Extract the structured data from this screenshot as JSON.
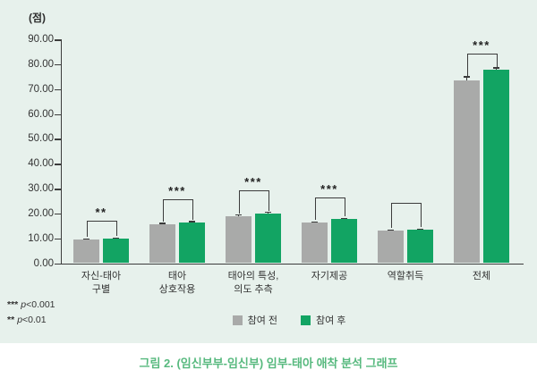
{
  "figure": {
    "unit_label": "(점)",
    "caption": "그림 2. (임신부부-임신부) 임부-태아 애착 분석 그래프"
  },
  "footnotes": [
    {
      "stars": "***",
      "pvar": "p",
      "rel": "<0.001"
    },
    {
      "stars": "**",
      "pvar": "p",
      "rel": "<0.01"
    }
  ],
  "legend": [
    {
      "label": "참여 전",
      "color": "#a9aaa9"
    },
    {
      "label": "참여 후",
      "color": "#12a463"
    }
  ],
  "colors": {
    "panel_bg": "#e7f1ec",
    "bar_pre": "#a9aaa9",
    "bar_post": "#12a463",
    "axis": "#3c3c3c",
    "caption_green": "#57b97e"
  },
  "chart_data": {
    "type": "bar",
    "title": "",
    "ylabel": "(점)",
    "ylim": [
      0,
      90
    ],
    "ytick_step": 10,
    "ytick_labels": [
      "0.00",
      "10.00",
      "20.00",
      "30.00",
      "40.00",
      "50.00",
      "60.00",
      "70.00",
      "80.00",
      "90.00"
    ],
    "categories": [
      "자신-태아\n구별",
      "태아\n상호작용",
      "태아의 특성,\n의도 추측",
      "자기제공",
      "역할취득",
      "전체"
    ],
    "series": [
      {
        "name": "참여 전",
        "color": "#a9aaa9",
        "values": [
          9.4,
          15.8,
          19.0,
          16.3,
          13.0,
          73.6
        ],
        "errors": [
          0.5,
          0.4,
          0.5,
          0.4,
          0.5,
          1.5
        ]
      },
      {
        "name": "참여 후",
        "color": "#12a463",
        "values": [
          9.8,
          16.5,
          20.1,
          17.9,
          13.4,
          77.8
        ],
        "errors": [
          0.4,
          0.4,
          0.5,
          0.4,
          0.5,
          0.9
        ]
      }
    ],
    "significance": [
      "**",
      "***",
      "***",
      "***",
      "",
      "***"
    ],
    "grid": false,
    "legend_position": "bottom"
  }
}
